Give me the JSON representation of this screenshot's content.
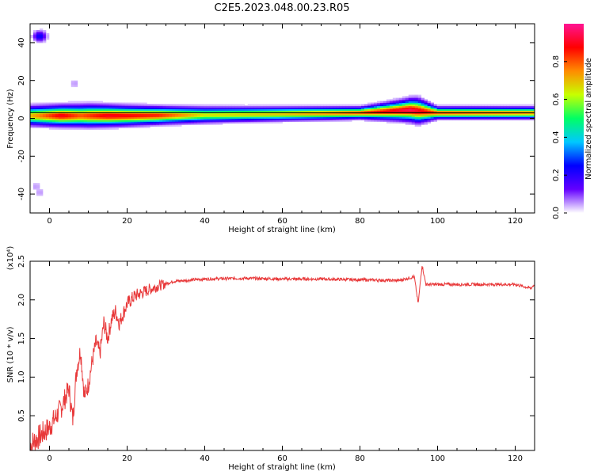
{
  "title": "C2E5.2023.048.00.23.R05",
  "chart_data": [
    {
      "type": "heatmap",
      "xlabel": "Height of straight line (km)",
      "ylabel": "Frequency (Hz)",
      "xlim": [
        -5,
        125
      ],
      "ylim": [
        -50,
        50
      ],
      "xticks": [
        0,
        20,
        40,
        60,
        80,
        100,
        120
      ],
      "yticks": [
        -40,
        -20,
        0,
        20,
        40
      ],
      "colorbar": {
        "label": "Normalized spectral amplitude",
        "range": [
          0.0,
          1.0
        ],
        "ticks": [
          "0.0",
          "0.2",
          "0.4",
          "0.6",
          "0.8"
        ],
        "colormap": [
          "#ffffff",
          "#6400ff",
          "#0000ff",
          "#00c8ff",
          "#00ff64",
          "#c8ff00",
          "#ff8c00",
          "#ff0000",
          "#ff1493"
        ]
      },
      "band": {
        "center_freq_hz": [
          [
            -5,
            1.5
          ],
          [
            20,
            1.5
          ],
          [
            40,
            2
          ],
          [
            60,
            2.5
          ],
          [
            80,
            3
          ],
          [
            93,
            4.5
          ],
          [
            100,
            3
          ],
          [
            125,
            3
          ]
        ],
        "half_width_hz": [
          [
            -5,
            4
          ],
          [
            10,
            4.5
          ],
          [
            30,
            3.5
          ],
          [
            50,
            3
          ],
          [
            80,
            2.5
          ],
          [
            90,
            4
          ],
          [
            95,
            5
          ],
          [
            100,
            2.5
          ],
          [
            125,
            2.5
          ]
        ],
        "peak_amplitude": [
          [
            -5,
            0.7
          ],
          [
            3,
            0.9
          ],
          [
            8,
            0.8
          ],
          [
            15,
            0.9
          ],
          [
            28,
            0.85
          ],
          [
            40,
            0.65
          ],
          [
            60,
            0.7
          ],
          [
            80,
            0.8
          ],
          [
            93,
            0.95
          ],
          [
            100,
            0.8
          ],
          [
            125,
            0.75
          ]
        ]
      },
      "spots": [
        {
          "x": -2.5,
          "y": 43.5,
          "amplitude": 0.25
        },
        {
          "x": 6.5,
          "y": 18.5,
          "amplitude": 0.05
        },
        {
          "x": -3.5,
          "y": -36,
          "amplitude": 0.05
        },
        {
          "x": -2.5,
          "y": -39,
          "amplitude": 0.05
        }
      ],
      "baseline_freq_hz": 3
    },
    {
      "type": "line",
      "xlabel": "Height of straight line (km)",
      "ylabel": "SNR (10 * v/v)",
      "y_multiplier": "(x10⁴)",
      "xlim": [
        -5,
        125
      ],
      "ylim": [
        0.05,
        2.5
      ],
      "xticks": [
        0,
        20,
        40,
        60,
        80,
        100,
        120
      ],
      "yticks": [
        "0.5",
        "1.0",
        "1.5",
        "2.0",
        "2.5"
      ],
      "series": [
        {
          "color": "#e8393a",
          "x": [
            -5,
            0,
            3,
            5,
            6,
            7,
            8,
            9,
            10,
            11,
            12,
            13,
            14,
            15,
            16,
            17,
            18,
            20,
            22,
            25,
            28,
            32,
            40,
            50,
            60,
            70,
            80,
            90,
            94,
            95,
            96,
            97,
            100,
            110,
            120,
            124,
            125
          ],
          "y": [
            0.12,
            0.35,
            0.6,
            0.85,
            0.45,
            1.1,
            1.35,
            0.75,
            0.9,
            1.2,
            1.45,
            1.3,
            1.7,
            1.5,
            1.75,
            1.85,
            1.7,
            1.95,
            2.05,
            2.12,
            2.18,
            2.24,
            2.27,
            2.28,
            2.27,
            2.27,
            2.26,
            2.25,
            2.3,
            1.95,
            2.45,
            2.2,
            2.2,
            2.2,
            2.2,
            2.15,
            2.2
          ],
          "noise": 0.05
        }
      ]
    }
  ]
}
